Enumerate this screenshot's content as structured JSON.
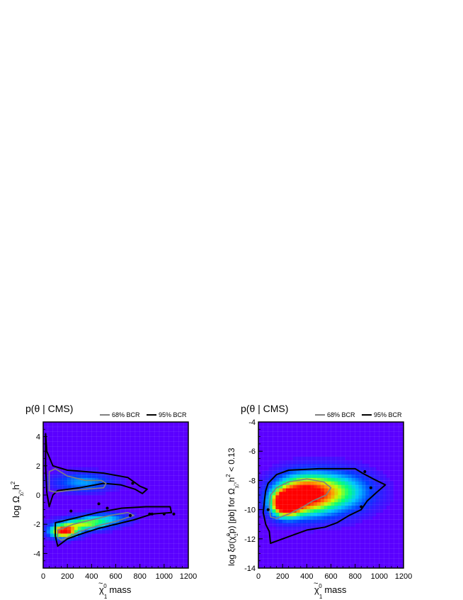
{
  "chart_data": [
    {
      "type": "heatmap",
      "title": "p(θ | CMS)",
      "xlabel": "χ̃₁⁰ mass",
      "xlabel_main": "χ",
      "xlabel_tilde": "~",
      "xlabel_sup": "0",
      "xlabel_sub": "1",
      "xlabel_rest": " mass",
      "ylabel_main": "log Ω",
      "ylabel_sub": "χ̃₁⁰",
      "ylabel_rest": "h",
      "ylabel_sup": "2",
      "xlim": [
        0,
        1200
      ],
      "ylim": [
        -5,
        5
      ],
      "xticks": [
        0,
        200,
        400,
        600,
        800,
        1000,
        1200
      ],
      "yticks": [
        -4,
        -2,
        0,
        2,
        4
      ],
      "legend": [
        {
          "label": "68% BCR",
          "color": "#808080"
        },
        {
          "label": "95% BCR",
          "color": "#000000"
        }
      ],
      "legend_placement": "top-right",
      "grid": true,
      "background_color": "#5a00ff",
      "regions": [
        {
          "name": "95% BCR",
          "points": [
            [
              20,
              4.2
            ],
            [
              30,
              3
            ],
            [
              80,
              2
            ],
            [
              200,
              1.7
            ],
            [
              350,
              1.6
            ],
            [
              500,
              1.5
            ],
            [
              700,
              1.2
            ],
            [
              800,
              0.6
            ],
            [
              860,
              0.4
            ],
            [
              820,
              0.1
            ],
            [
              760,
              0.4
            ],
            [
              640,
              0.7
            ],
            [
              500,
              0.8
            ],
            [
              300,
              0.5
            ],
            [
              120,
              0.3
            ],
            [
              80,
              0
            ],
            [
              50,
              -0.8
            ],
            [
              30,
              0.2
            ],
            [
              20,
              2
            ]
          ]
        },
        {
          "name": "68% BCR",
          "points": [
            [
              50,
              1.6
            ],
            [
              100,
              1.8
            ],
            [
              200,
              1.3
            ],
            [
              350,
              1.0
            ],
            [
              480,
              1.0
            ],
            [
              520,
              0.8
            ],
            [
              500,
              0.5
            ],
            [
              350,
              0.4
            ],
            [
              200,
              0.3
            ],
            [
              100,
              0.2
            ],
            [
              50,
              0.3
            ]
          ]
        },
        {
          "name": "95% BCR",
          "points": [
            [
              100,
              -1.9
            ],
            [
              250,
              -1.6
            ],
            [
              450,
              -1.2
            ],
            [
              650,
              -0.9
            ],
            [
              850,
              -0.8
            ],
            [
              1050,
              -0.8
            ],
            [
              1060,
              -1.2
            ],
            [
              900,
              -1.3
            ],
            [
              750,
              -1.7
            ],
            [
              600,
              -2.0
            ],
            [
              450,
              -2.3
            ],
            [
              300,
              -2.7
            ],
            [
              200,
              -3.0
            ],
            [
              120,
              -3.5
            ],
            [
              100,
              -2.8
            ]
          ]
        },
        {
          "name": "68% BCR",
          "points": [
            [
              120,
              -2.4
            ],
            [
              250,
              -2.0
            ],
            [
              400,
              -1.7
            ],
            [
              550,
              -1.4
            ],
            [
              700,
              -1.2
            ],
            [
              750,
              -1.4
            ],
            [
              600,
              -1.8
            ],
            [
              450,
              -2.1
            ],
            [
              300,
              -2.5
            ],
            [
              150,
              -3.1
            ],
            [
              120,
              -2.9
            ]
          ]
        }
      ],
      "islands": [
        [
          230,
          -1.1
        ],
        [
          530,
          -0.9
        ],
        [
          460,
          -0.6
        ],
        [
          740,
          0.8
        ],
        [
          880,
          -1.3
        ],
        [
          900,
          -1.3
        ],
        [
          1000,
          -1.3
        ],
        [
          1080,
          -1.3
        ],
        [
          720,
          -1.4
        ]
      ],
      "hotspots": [
        {
          "x": 330,
          "y": 0.9,
          "sx": 170,
          "sy": 0.45,
          "w": 0.35
        },
        {
          "x": 170,
          "y": -2.5,
          "sx": 80,
          "sy": 0.3,
          "w": 1.0
        },
        {
          "x": 330,
          "y": -2.0,
          "sx": 140,
          "sy": 0.3,
          "w": 0.6
        },
        {
          "x": 520,
          "y": -1.6,
          "sx": 140,
          "sy": 0.3,
          "w": 0.35
        }
      ]
    },
    {
      "type": "heatmap",
      "title": "p(θ | CMS)",
      "xlabel": "χ̃₁⁰ mass",
      "xlabel_main": "χ",
      "xlabel_tilde": "~",
      "xlabel_sup": "0",
      "xlabel_sub": "1",
      "xlabel_rest": " mass",
      "ylabel_main": "log ξσ(χ̃",
      "ylabel_sup1": "0",
      "ylabel_sub1": "1",
      "ylabel_mid": "p) [pb] for Ω",
      "ylabel_sub": "χ̃₁⁰",
      "ylabel_rest": "h",
      "ylabel_sup": "2",
      "ylabel_end": " < 0.13",
      "xlim": [
        0,
        1200
      ],
      "ylim": [
        -14,
        -4
      ],
      "xticks": [
        0,
        200,
        400,
        600,
        800,
        1000,
        1200
      ],
      "yticks": [
        -14,
        -12,
        -10,
        -8,
        -6,
        -4
      ],
      "legend": [
        {
          "label": "68% BCR",
          "color": "#808080"
        },
        {
          "label": "95% BCR",
          "color": "#000000"
        }
      ],
      "legend_placement": "top-right",
      "grid": true,
      "background_color": "#5a00ff",
      "regions": [
        {
          "name": "95% BCR",
          "points": [
            [
              60,
              -8.7
            ],
            [
              80,
              -8.2
            ],
            [
              150,
              -7.6
            ],
            [
              250,
              -7.3
            ],
            [
              500,
              -7.2
            ],
            [
              800,
              -7.2
            ],
            [
              860,
              -7.5
            ],
            [
              950,
              -7.9
            ],
            [
              1050,
              -8.3
            ],
            [
              980,
              -8.8
            ],
            [
              900,
              -9.4
            ],
            [
              850,
              -10.0
            ],
            [
              750,
              -10.4
            ],
            [
              650,
              -10.9
            ],
            [
              550,
              -11.2
            ],
            [
              400,
              -11.4
            ],
            [
              300,
              -11.7
            ],
            [
              200,
              -12.0
            ],
            [
              100,
              -12.3
            ],
            [
              90,
              -11.5
            ],
            [
              60,
              -11.0
            ],
            [
              40,
              -10.2
            ],
            [
              50,
              -9.4
            ]
          ]
        },
        {
          "name": "68% BCR",
          "points": [
            [
              100,
              -9.0
            ],
            [
              150,
              -8.5
            ],
            [
              250,
              -8.1
            ],
            [
              400,
              -7.9
            ],
            [
              540,
              -8.1
            ],
            [
              600,
              -8.5
            ],
            [
              560,
              -9.0
            ],
            [
              450,
              -9.4
            ],
            [
              350,
              -9.9
            ],
            [
              250,
              -10.3
            ],
            [
              150,
              -10.6
            ],
            [
              100,
              -10.5
            ],
            [
              90,
              -9.8
            ]
          ]
        }
      ],
      "islands": [
        [
          80,
          -10.0
        ],
        [
          880,
          -7.4
        ],
        [
          850,
          -9.8
        ],
        [
          930,
          -8.5
        ]
      ],
      "hotspots": [
        {
          "x": 220,
          "y": -9.6,
          "sx": 80,
          "sy": 0.6,
          "w": 1.0
        },
        {
          "x": 350,
          "y": -9.0,
          "sx": 150,
          "sy": 0.9,
          "w": 0.7
        },
        {
          "x": 500,
          "y": -8.9,
          "sx": 220,
          "sy": 1.1,
          "w": 0.45
        },
        {
          "x": 700,
          "y": -8.7,
          "sx": 200,
          "sy": 0.9,
          "w": 0.3
        }
      ]
    }
  ]
}
